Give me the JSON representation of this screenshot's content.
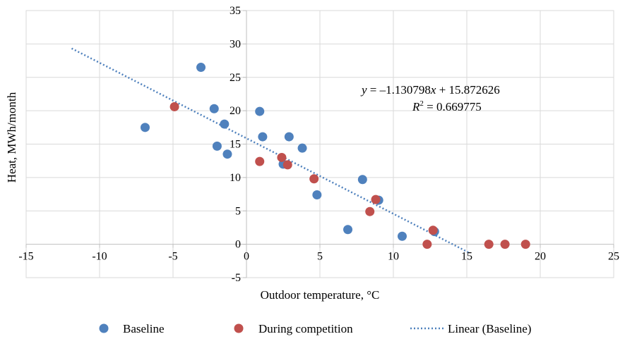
{
  "chart_data": {
    "type": "scatter",
    "xlabel": "Outdoor temperature, °C",
    "ylabel": "Heat, MWh/month",
    "xlim": [
      -15,
      25
    ],
    "ylim": [
      -5,
      35
    ],
    "xticks": [
      -15,
      -10,
      -5,
      0,
      5,
      10,
      15,
      20,
      25
    ],
    "yticks": [
      -5,
      0,
      5,
      10,
      15,
      20,
      25,
      30,
      35
    ],
    "grid": true,
    "legend_position": "bottom",
    "series": [
      {
        "name": "Baseline",
        "color": "#4f81bd",
        "points": [
          {
            "x": -6.9,
            "y": 17.5
          },
          {
            "x": -3.1,
            "y": 26.5
          },
          {
            "x": -2.2,
            "y": 20.3
          },
          {
            "x": -2.0,
            "y": 14.7
          },
          {
            "x": -1.5,
            "y": 18.0
          },
          {
            "x": -1.3,
            "y": 13.5
          },
          {
            "x": 0.9,
            "y": 19.9
          },
          {
            "x": 1.1,
            "y": 16.1
          },
          {
            "x": 2.5,
            "y": 12.0
          },
          {
            "x": 2.9,
            "y": 16.1
          },
          {
            "x": 3.8,
            "y": 14.4
          },
          {
            "x": 4.8,
            "y": 7.4
          },
          {
            "x": 6.9,
            "y": 2.2
          },
          {
            "x": 7.9,
            "y": 9.7
          },
          {
            "x": 9.0,
            "y": 6.6
          },
          {
            "x": 10.6,
            "y": 1.2
          },
          {
            "x": 12.8,
            "y": 1.9
          }
        ]
      },
      {
        "name": "During competition",
        "color": "#c0504d",
        "points": [
          {
            "x": -4.9,
            "y": 20.6
          },
          {
            "x": 0.9,
            "y": 12.4
          },
          {
            "x": 2.4,
            "y": 13.0
          },
          {
            "x": 2.8,
            "y": 11.9
          },
          {
            "x": 4.6,
            "y": 9.8
          },
          {
            "x": 8.4,
            "y": 4.9
          },
          {
            "x": 8.8,
            "y": 6.7
          },
          {
            "x": 12.7,
            "y": 2.1
          },
          {
            "x": 12.3,
            "y": 0.0
          },
          {
            "x": 16.5,
            "y": 0.0
          },
          {
            "x": 17.6,
            "y": 0.0
          },
          {
            "x": 19.0,
            "y": 0.0
          }
        ]
      }
    ],
    "trendline": {
      "name": "Linear (Baseline)",
      "color": "#4f81bd",
      "style": "dotted",
      "slope": -1.130798,
      "intercept": 15.872626,
      "x_range": [
        -11.9,
        15.1
      ]
    },
    "annotation": {
      "equation_lhs": "y",
      "equation_rhs": " = –1.130798",
      "equation_var": "x",
      "equation_tail": " + 15.872626",
      "r2_label": "R",
      "r2_sup": "2",
      "r2_value": " = 0.669775"
    }
  }
}
